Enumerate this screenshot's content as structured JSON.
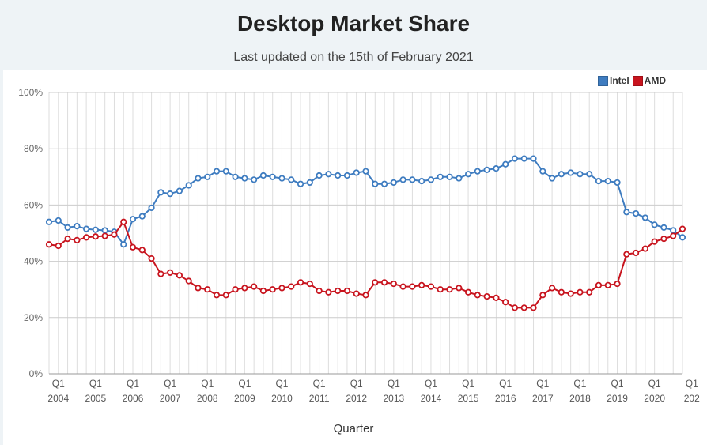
{
  "chart_data": {
    "type": "line",
    "title": "Desktop Market Share",
    "subtitle": "Last updated on the 15th of February 2021",
    "xlabel": "Quarter",
    "ylabel": "",
    "ylim": [
      0,
      100
    ],
    "yticks": [
      "0%",
      "20%",
      "40%",
      "60%",
      "80%",
      "100%"
    ],
    "ytick_values": [
      0,
      20,
      40,
      60,
      80,
      100
    ],
    "grid": true,
    "legend": "top-right",
    "x_tick_labels": [
      {
        "q": "Q1",
        "year": "2004"
      },
      {
        "q": "Q1",
        "year": "2005"
      },
      {
        "q": "Q1",
        "year": "2006"
      },
      {
        "q": "Q1",
        "year": "2007"
      },
      {
        "q": "Q1",
        "year": "2008"
      },
      {
        "q": "Q1",
        "year": "2009"
      },
      {
        "q": "Q1",
        "year": "2010"
      },
      {
        "q": "Q1",
        "year": "2011"
      },
      {
        "q": "Q1",
        "year": "2012"
      },
      {
        "q": "Q1",
        "year": "2013"
      },
      {
        "q": "Q1",
        "year": "2014"
      },
      {
        "q": "Q1",
        "year": "2015"
      },
      {
        "q": "Q1",
        "year": "2016"
      },
      {
        "q": "Q1",
        "year": "2017"
      },
      {
        "q": "Q1",
        "year": "2018"
      },
      {
        "q": "Q1",
        "year": "2019"
      },
      {
        "q": "Q1",
        "year": "2020"
      },
      {
        "q": "Q1",
        "year": "202"
      }
    ],
    "series": [
      {
        "name": "Intel",
        "color": "#3e7cc0",
        "values": [
          54,
          54.5,
          52,
          52.5,
          51.5,
          51.2,
          51,
          50.5,
          46,
          55,
          56,
          59,
          64.5,
          64,
          65,
          67,
          69.5,
          70,
          72,
          72,
          70,
          69.5,
          69,
          70.5,
          70,
          69.5,
          69,
          67.5,
          68,
          70.5,
          71,
          70.5,
          70.5,
          71.5,
          72,
          67.5,
          67.5,
          68,
          69,
          69,
          68.5,
          69,
          70,
          70,
          69.5,
          71,
          72,
          72.5,
          73,
          74.5,
          76.5,
          76.5,
          76.5,
          72,
          69.5,
          71,
          71.5,
          71,
          71,
          68.5,
          68.5,
          68,
          57.5,
          57,
          55.5,
          53,
          52,
          51,
          48.5
        ]
      },
      {
        "name": "AMD",
        "color": "#c8141e",
        "values": [
          46,
          45.5,
          48,
          47.5,
          48.5,
          48.8,
          49,
          49.5,
          54,
          45,
          44,
          41,
          35.5,
          36,
          35,
          33,
          30.5,
          30,
          28,
          28,
          30,
          30.5,
          31,
          29.5,
          30,
          30.5,
          31,
          32.5,
          32,
          29.5,
          29,
          29.5,
          29.5,
          28.5,
          28,
          32.5,
          32.5,
          32,
          31,
          31,
          31.5,
          31,
          30,
          30,
          30.5,
          29,
          28,
          27.5,
          27,
          25.5,
          23.5,
          23.5,
          23.5,
          28,
          30.5,
          29,
          28.5,
          29,
          29,
          31.5,
          31.5,
          32,
          42.5,
          43,
          44.5,
          47,
          48,
          49,
          51.5
        ]
      }
    ]
  }
}
